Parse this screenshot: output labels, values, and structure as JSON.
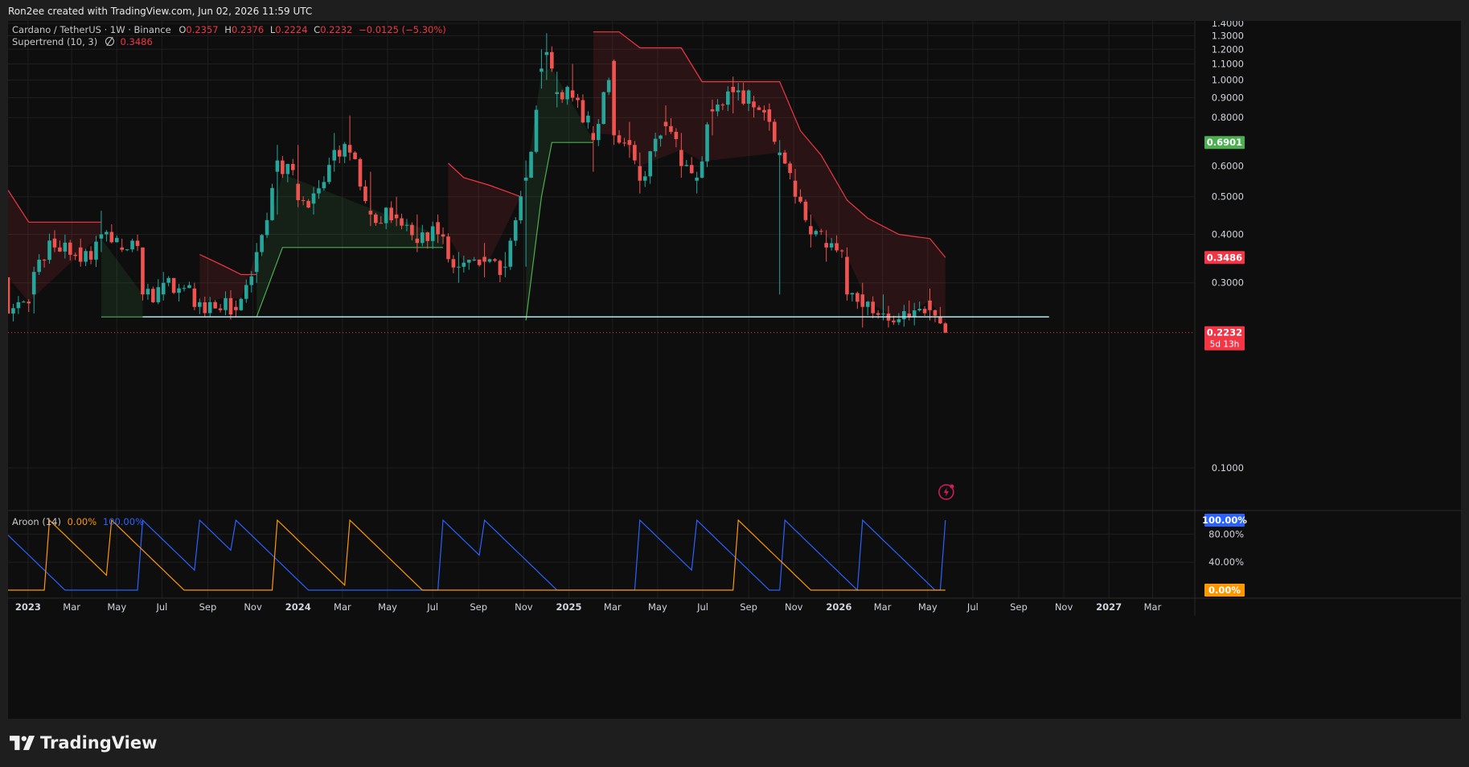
{
  "header": {
    "caption": "Ron2ee created with TradingView.com, Jun 02, 2026 11:59 UTC"
  },
  "legend": {
    "symbol": "Cardano / TetherUS · 1W · Binance",
    "o_label": "O",
    "o_value": "0.2357",
    "h_label": "H",
    "h_value": "0.2376",
    "l_label": "L",
    "l_value": "0.2224",
    "c_label": "C",
    "c_value": "0.2232",
    "change": "−0.0125 (−5.30%)",
    "supertrend_label": "Supertrend (10, 3)",
    "supertrend_icon": "eye-off-icon",
    "supertrend_value": "0.3486",
    "aroon_label": "Aroon (14)",
    "aroon_up_value": "0.00%",
    "aroon_down_value": "100.00%"
  },
  "colors": {
    "up": "#26a69a",
    "down": "#ef5350",
    "supertrend_up": "#4caf50",
    "supertrend_down": "#f23645",
    "support_line": "#b2ebf2",
    "aroon_up": "#ff9800",
    "aroon_down": "#2962ff",
    "bg": "#0e0e0e",
    "grid": "#1f1f1f",
    "axis_text": "#d1d4dc"
  },
  "price_badges": {
    "supertrend_green": "0.6901",
    "supertrend_red": "0.3486",
    "last_price": "0.2232",
    "countdown": "5d 13h"
  },
  "aroon_badges": {
    "down": "100.00%",
    "up": "0.00%"
  },
  "brand": {
    "name": "TradingView",
    "icon": "tradingview-logo-icon"
  },
  "chart_data": {
    "type": "candlestick",
    "symbol": "Cardano / TetherUS",
    "interval": "1W",
    "exchange": "Binance",
    "y_axis": {
      "scale": "log",
      "range": [
        0.078,
        1.42
      ],
      "ticks": [
        "1.4000",
        "1.3000",
        "1.2000",
        "1.1000",
        "1.0000",
        "0.9000",
        "0.8000",
        "0.6000",
        "0.5000",
        "0.4000",
        "0.3000",
        "0.1000"
      ]
    },
    "x_axis": {
      "range": [
        "2022-12-05",
        "2027-04-26"
      ],
      "ticks": [
        {
          "label": "2023",
          "date": "2023-01-01"
        },
        {
          "label": "Mar",
          "date": "2023-03-01"
        },
        {
          "label": "May",
          "date": "2023-05-01"
        },
        {
          "label": "Jul",
          "date": "2023-07-01"
        },
        {
          "label": "Sep",
          "date": "2023-09-01"
        },
        {
          "label": "Nov",
          "date": "2023-11-01"
        },
        {
          "label": "2024",
          "date": "2024-01-01"
        },
        {
          "label": "Mar",
          "date": "2024-03-01"
        },
        {
          "label": "May",
          "date": "2024-05-01"
        },
        {
          "label": "Jul",
          "date": "2024-07-01"
        },
        {
          "label": "Sep",
          "date": "2024-09-01"
        },
        {
          "label": "Nov",
          "date": "2024-11-01"
        },
        {
          "label": "2025",
          "date": "2025-01-01"
        },
        {
          "label": "Mar",
          "date": "2025-03-01"
        },
        {
          "label": "May",
          "date": "2025-05-01"
        },
        {
          "label": "Jul",
          "date": "2025-07-01"
        },
        {
          "label": "Sep",
          "date": "2025-09-01"
        },
        {
          "label": "Nov",
          "date": "2025-11-01"
        },
        {
          "label": "2026",
          "date": "2026-01-01"
        },
        {
          "label": "Mar",
          "date": "2026-03-01"
        },
        {
          "label": "May",
          "date": "2026-05-01"
        },
        {
          "label": "Jul",
          "date": "2026-07-01"
        },
        {
          "label": "Sep",
          "date": "2026-09-01"
        },
        {
          "label": "Nov",
          "date": "2026-11-01"
        },
        {
          "label": "2027",
          "date": "2027-01-01"
        },
        {
          "label": "Mar",
          "date": "2027-03-01"
        }
      ]
    },
    "grid": true,
    "anchors": [
      [
        "2022-12-05",
        0.31,
        0.25,
        0.3,
        0.25
      ],
      [
        "2023-01-09",
        0.28,
        0.25,
        0.33,
        0.32
      ],
      [
        "2023-02-06",
        0.39,
        0.36,
        0.41,
        0.37
      ],
      [
        "2023-03-13",
        0.37,
        0.33,
        0.39,
        0.34
      ],
      [
        "2023-04-10",
        0.39,
        0.36,
        0.46,
        0.4
      ],
      [
        "2023-05-08",
        0.37,
        0.36,
        0.39,
        0.365
      ],
      [
        "2023-06-05",
        0.37,
        0.27,
        0.37,
        0.28
      ],
      [
        "2023-07-03",
        0.28,
        0.27,
        0.32,
        0.3
      ],
      [
        "2023-08-14",
        0.29,
        0.255,
        0.3,
        0.26
      ],
      [
        "2023-10-09",
        0.26,
        0.245,
        0.27,
        0.255
      ],
      [
        "2023-11-06",
        0.32,
        0.3,
        0.38,
        0.36
      ],
      [
        "2023-12-04",
        0.58,
        0.45,
        0.68,
        0.62
      ],
      [
        "2024-01-01",
        0.54,
        0.47,
        0.68,
        0.49
      ],
      [
        "2024-01-22",
        0.48,
        0.45,
        0.53,
        0.51
      ],
      [
        "2024-02-19",
        0.62,
        0.58,
        0.73,
        0.66
      ],
      [
        "2024-03-11",
        0.68,
        0.62,
        0.81,
        0.65
      ],
      [
        "2024-04-08",
        0.46,
        0.42,
        0.58,
        0.45
      ],
      [
        "2024-05-13",
        0.45,
        0.42,
        0.5,
        0.44
      ],
      [
        "2024-06-10",
        0.39,
        0.36,
        0.45,
        0.38
      ],
      [
        "2024-07-08",
        0.43,
        0.38,
        0.45,
        0.4
      ],
      [
        "2024-08-05",
        0.33,
        0.3,
        0.36,
        0.33
      ],
      [
        "2024-09-09",
        0.35,
        0.31,
        0.38,
        0.34
      ],
      [
        "2024-10-07",
        0.33,
        0.31,
        0.36,
        0.33
      ],
      [
        "2024-11-04",
        0.55,
        0.33,
        0.62,
        0.56
      ],
      [
        "2024-11-25",
        1.05,
        0.95,
        1.2,
        1.07
      ],
      [
        "2024-12-02",
        1.16,
        1.0,
        1.32,
        1.18
      ],
      [
        "2024-12-16",
        0.92,
        0.85,
        1.05,
        0.93
      ],
      [
        "2025-01-06",
        0.94,
        0.88,
        1.1,
        0.9
      ],
      [
        "2025-02-03",
        0.73,
        0.58,
        0.76,
        0.7
      ],
      [
        "2025-03-03",
        1.12,
        0.68,
        1.13,
        0.72
      ],
      [
        "2025-03-24",
        0.7,
        0.63,
        0.78,
        0.68
      ],
      [
        "2025-04-07",
        0.6,
        0.51,
        0.65,
        0.55
      ],
      [
        "2025-05-12",
        0.78,
        0.72,
        0.86,
        0.76
      ],
      [
        "2025-06-02",
        0.66,
        0.56,
        0.73,
        0.6
      ],
      [
        "2025-06-23",
        0.55,
        0.51,
        0.58,
        0.56
      ],
      [
        "2025-07-14",
        0.84,
        0.72,
        0.89,
        0.83
      ],
      [
        "2025-08-11",
        0.96,
        0.82,
        1.02,
        0.93
      ],
      [
        "2025-09-08",
        0.88,
        0.8,
        0.91,
        0.85
      ],
      [
        "2025-09-29",
        0.84,
        0.74,
        0.87,
        0.78
      ],
      [
        "2025-10-13",
        0.64,
        0.28,
        0.7,
        0.65
      ],
      [
        "2025-11-03",
        0.55,
        0.48,
        0.59,
        0.5
      ],
      [
        "2025-11-24",
        0.42,
        0.37,
        0.45,
        0.4
      ],
      [
        "2025-12-15",
        0.38,
        0.34,
        0.41,
        0.37
      ],
      [
        "2026-01-12",
        0.35,
        0.27,
        0.37,
        0.28
      ],
      [
        "2026-02-02",
        0.28,
        0.23,
        0.3,
        0.26
      ],
      [
        "2026-03-02",
        0.25,
        0.24,
        0.28,
        0.25
      ],
      [
        "2026-04-06",
        0.25,
        0.24,
        0.27,
        0.245
      ],
      [
        "2026-05-04",
        0.27,
        0.24,
        0.29,
        0.255
      ],
      [
        "2026-05-18",
        0.245,
        0.235,
        0.26,
        0.2357
      ],
      [
        "2026-05-25",
        0.2357,
        0.2224,
        0.2376,
        0.2232
      ]
    ],
    "supertrend": [
      {
        "dir": "down",
        "points": [
          [
            "2022-12-05",
            0.52
          ],
          [
            "2023-01-02",
            0.43
          ],
          [
            "2023-04-10",
            0.43
          ]
        ]
      },
      {
        "dir": "up",
        "points": [
          [
            "2023-04-10",
            0.245
          ],
          [
            "2023-06-05",
            0.245
          ]
        ]
      },
      {
        "dir": "down",
        "points": [
          [
            "2023-08-21",
            0.355
          ],
          [
            "2023-09-25",
            0.33
          ],
          [
            "2023-10-16",
            0.315
          ],
          [
            "2023-11-06",
            0.315
          ]
        ]
      },
      {
        "dir": "up",
        "points": [
          [
            "2023-11-06",
            0.245
          ],
          [
            "2023-12-11",
            0.37
          ],
          [
            "2024-07-15",
            0.37
          ]
        ]
      },
      {
        "dir": "down",
        "points": [
          [
            "2024-07-22",
            0.61
          ],
          [
            "2024-08-12",
            0.56
          ],
          [
            "2024-09-16",
            0.535
          ],
          [
            "2024-10-28",
            0.5
          ]
        ]
      },
      {
        "dir": "up",
        "points": [
          [
            "2024-11-04",
            0.24
          ],
          [
            "2024-11-25",
            0.5
          ],
          [
            "2024-12-09",
            0.69
          ],
          [
            "2025-02-03",
            0.69
          ]
        ]
      },
      {
        "dir": "down",
        "points": [
          [
            "2025-02-03",
            1.33
          ],
          [
            "2025-03-10",
            1.33
          ],
          [
            "2025-04-07",
            1.21
          ],
          [
            "2025-06-02",
            1.21
          ],
          [
            "2025-06-30",
            0.99
          ],
          [
            "2025-10-13",
            0.99
          ],
          [
            "2025-11-10",
            0.74
          ],
          [
            "2025-12-08",
            0.64
          ],
          [
            "2026-01-12",
            0.49
          ],
          [
            "2026-02-09",
            0.44
          ],
          [
            "2026-03-23",
            0.4
          ],
          [
            "2026-05-04",
            0.39
          ],
          [
            "2026-05-25",
            0.3486
          ]
        ]
      }
    ],
    "support_line": {
      "value": 0.245,
      "from": "2023-06-05",
      "to": "2026-10-12"
    },
    "last_price": 0.2232,
    "aroon": {
      "period": 14,
      "up_last": 0.0,
      "down_last": 100.0,
      "up_resets": [
        "2023-01-30",
        "2023-04-24",
        "2023-12-04",
        "2024-03-11",
        "2025-08-18"
      ],
      "down_resets": [
        "2022-11-14",
        "2023-06-05",
        "2023-08-21",
        "2023-10-09",
        "2024-07-15",
        "2024-09-09",
        "2025-04-07",
        "2025-06-23",
        "2025-10-20",
        "2026-02-02",
        "2026-05-25"
      ],
      "y_ticks": [
        "80.00%",
        "40.00%"
      ]
    }
  }
}
